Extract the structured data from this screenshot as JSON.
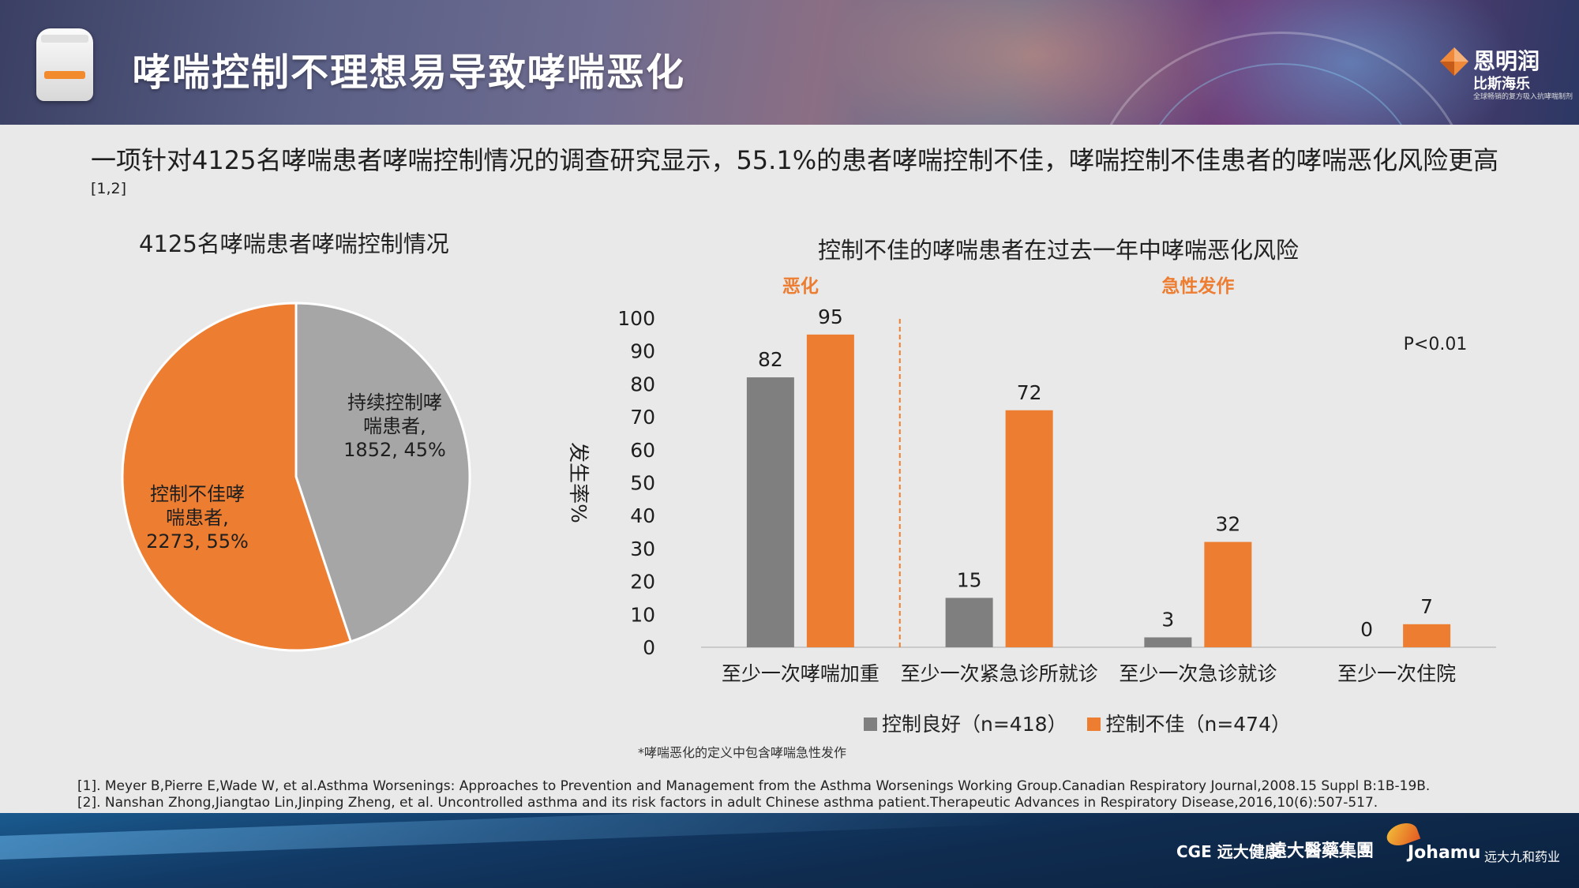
{
  "header": {
    "title": "哮喘控制不理想易导致哮喘恶化",
    "brand_name": "恩明润",
    "brand_sub": "比斯海乐",
    "brand_tag": "全球畅销的复方吸入抗哮喘制剂"
  },
  "intro": {
    "text": "一项针对4125名哮喘患者哮喘控制情况的调查研究显示，55.1%的患者哮喘控制不佳，哮喘控制不佳患者的哮喘恶化风险更高",
    "citation": "[1,2]"
  },
  "chart_data": [
    {
      "type": "pie",
      "title": "4125名哮喘患者哮喘控制情况",
      "slices": [
        {
          "label_lines": [
            "持续控制哮",
            "喘患者,",
            "1852, 45%"
          ],
          "value": 1852,
          "percent": 45,
          "color": "#a6a6a6"
        },
        {
          "label_lines": [
            "控制不佳哮",
            "喘患者,",
            "2273, 55%"
          ],
          "value": 2273,
          "percent": 55,
          "color": "#ed7d31"
        }
      ]
    },
    {
      "type": "bar",
      "title": "控制不佳的哮喘患者在过去一年中哮喘恶化风险",
      "ylabel": "发生率%",
      "ylim": [
        0,
        100
      ],
      "yticks": [
        0,
        10,
        20,
        30,
        40,
        50,
        60,
        70,
        80,
        90,
        100
      ],
      "categories": [
        "至少一次哮喘加重",
        "至少一次紧急诊所就诊",
        "至少一次急诊就诊",
        "至少一次住院"
      ],
      "series": [
        {
          "name": "控制良好（n=418）",
          "values": [
            82,
            15,
            3,
            0
          ],
          "color": "#7f7f7f"
        },
        {
          "name": "控制不佳（n=474）",
          "values": [
            95,
            72,
            32,
            7
          ],
          "color": "#ed7d31"
        }
      ],
      "group_labels": [
        "恶化",
        "急性发作"
      ],
      "group_label_color": "#ed7d31",
      "annotation": "P<0.01",
      "legend": "bottom"
    }
  ],
  "footnote": "*哮喘恶化的定义中包含哮喘急性发作",
  "references": [
    "[1]. Meyer B,Pierre E,Wade W, et al.Asthma Worsenings: Approaches to Prevention and Management from the Asthma Worsenings Working Group.Canadian Respiratory Journal,2008.15 Suppl B:1B-19B.",
    "[2]. Nanshan Zhong,Jiangtao Lin,Jinping Zheng, et al. Uncontrolled asthma and its risk factors in adult Chinese asthma patient.Therapeutic Advances in Respiratory Disease,2016,10(6):507-517."
  ],
  "footer": {
    "logo_cge": "CGE 远大健康",
    "logo_grand": "遠大醫藥集團",
    "logo_johamu": "Johamu",
    "logo_johamu_cn": "远大九和药业"
  }
}
